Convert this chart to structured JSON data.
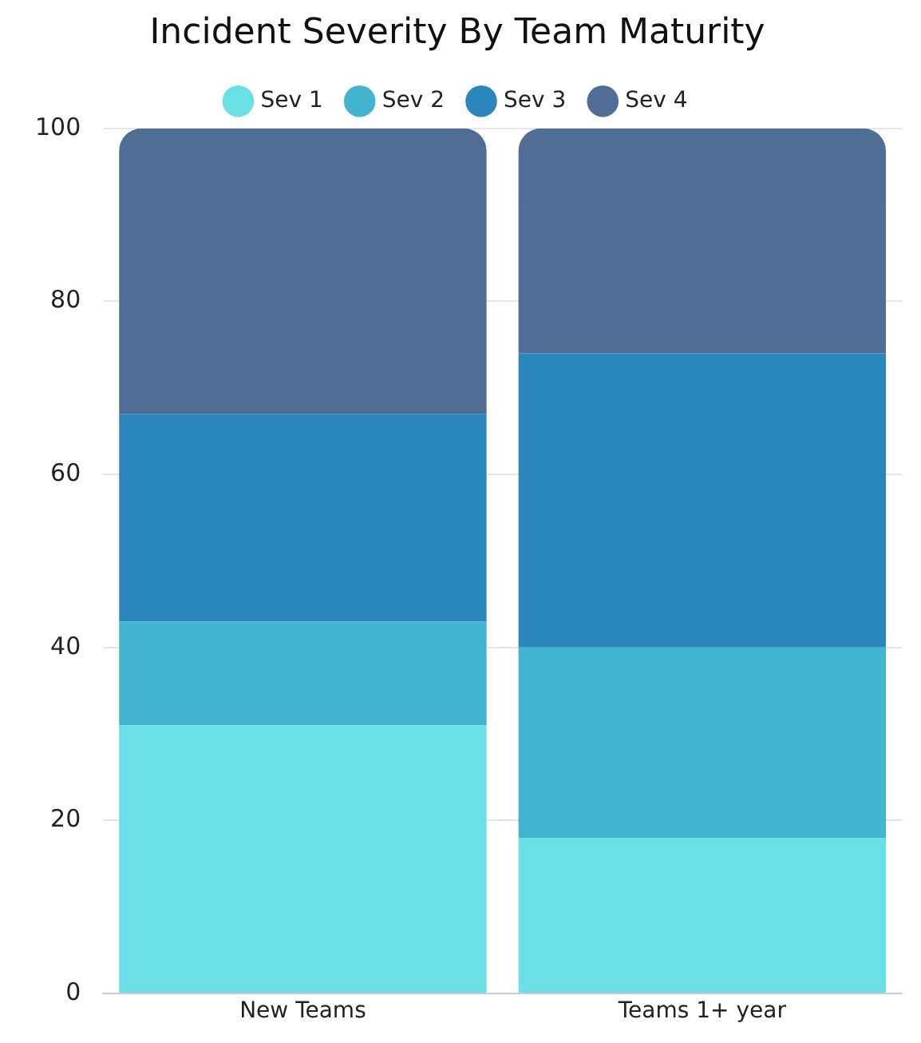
{
  "chart_data": {
    "type": "bar",
    "title": "Incident Severity By Team Maturity",
    "categories": [
      "New Teams",
      "Teams 1+ year"
    ],
    "stacked": true,
    "ylim": [
      0,
      100
    ],
    "yticks": [
      0,
      20,
      40,
      60,
      80,
      100
    ],
    "grid": "y",
    "legend": "top",
    "series": [
      {
        "name": "Sev 1",
        "color": "#6ae0e6",
        "values": [
          31,
          18
        ]
      },
      {
        "name": "Sev 2",
        "color": "#42b4d0",
        "values": [
          12,
          22
        ]
      },
      {
        "name": "Sev 3",
        "color": "#2b86bb",
        "values": [
          24,
          34
        ]
      },
      {
        "name": "Sev 4",
        "color": "#506d96",
        "values": [
          33,
          26
        ]
      }
    ]
  }
}
